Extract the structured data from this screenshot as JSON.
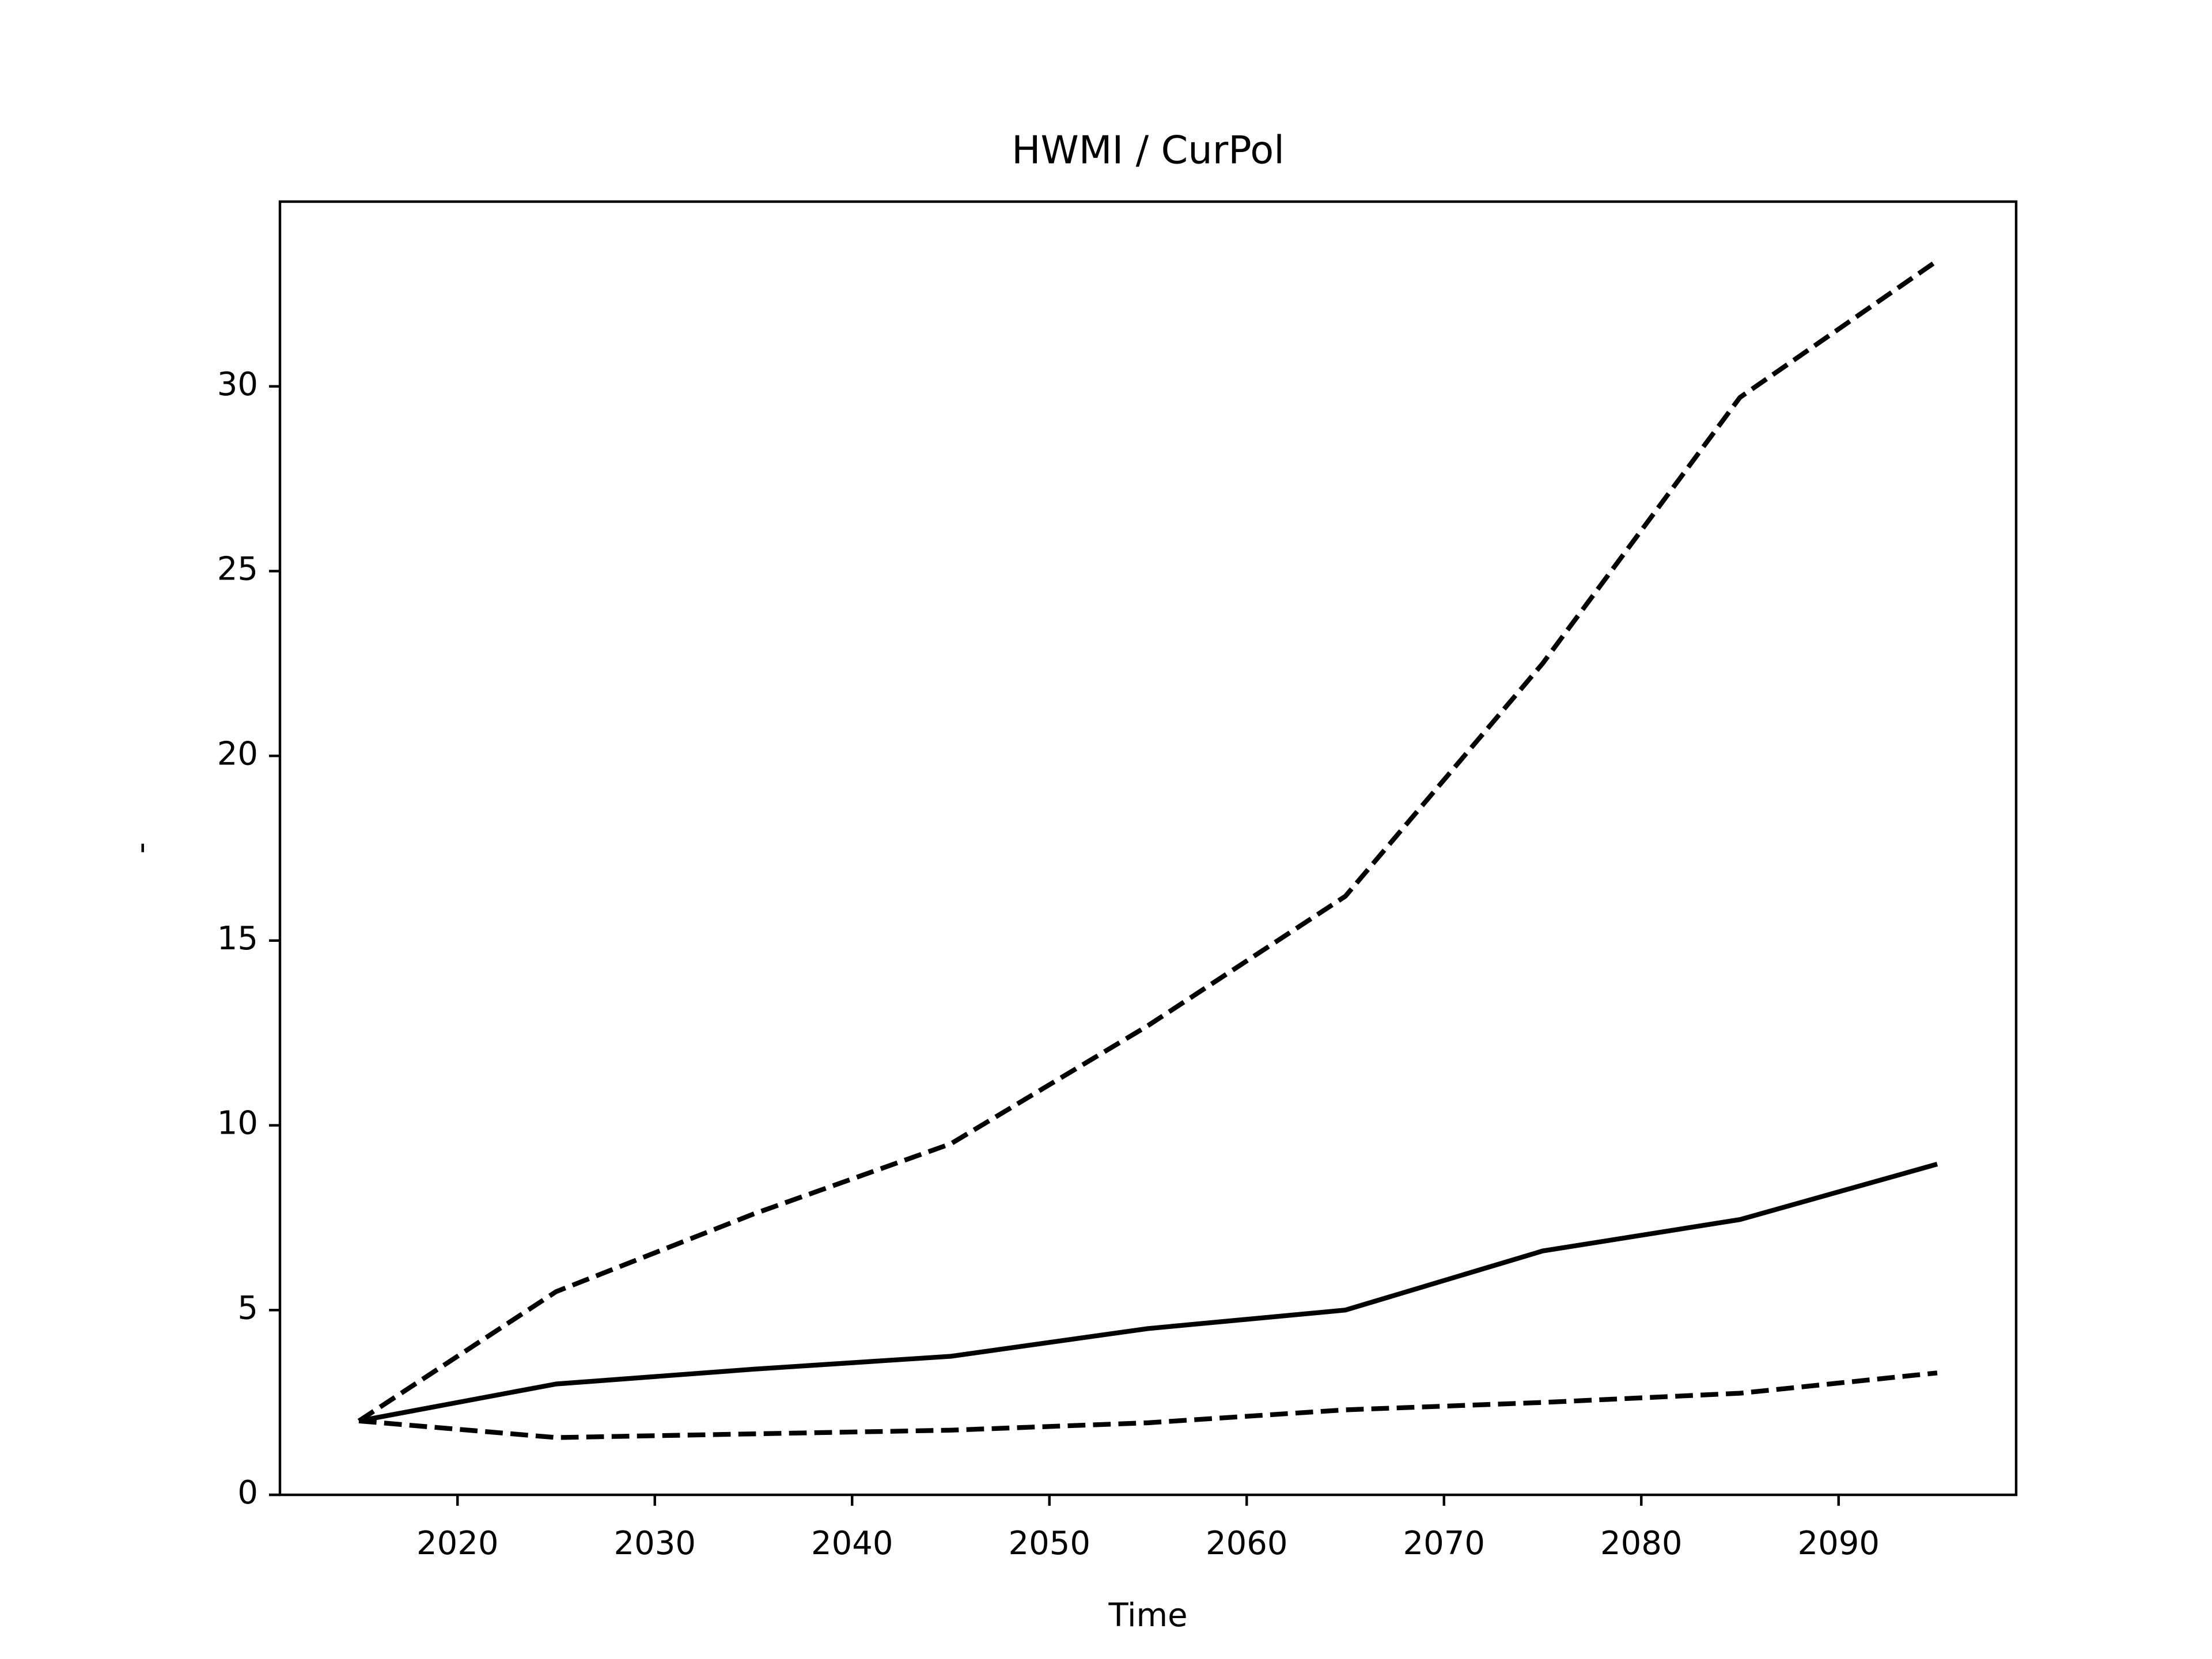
{
  "chart_data": {
    "type": "line",
    "title": "HWMI / CurPol",
    "xlabel": "Time",
    "ylabel": "-",
    "x": [
      2015,
      2025,
      2035,
      2045,
      2055,
      2065,
      2075,
      2085,
      2095
    ],
    "series": [
      {
        "color": "#000000",
        "linestyle": "solid",
        "values": [
          2,
          3,
          3.4,
          3.75,
          4.5,
          5.0,
          6.6,
          7.45,
          8.95
        ]
      },
      {
        "color": "#000000",
        "linestyle": "dashed",
        "values": [
          2,
          5.5,
          7.6,
          9.5,
          12.7,
          16.2,
          22.5,
          29.7,
          33.4
        ]
      },
      {
        "color": "#000000",
        "linestyle": "dashed",
        "values": [
          2,
          1.55,
          1.65,
          1.75,
          1.95,
          2.3,
          2.5,
          2.75,
          3.3
        ]
      }
    ],
    "xlim": [
      2011,
      2099
    ],
    "xticks": [
      2020,
      2030,
      2040,
      2050,
      2060,
      2070,
      2080,
      2090
    ],
    "ylim": [
      0,
      35
    ],
    "yticks": [
      0,
      5,
      10,
      15,
      20,
      25,
      30
    ],
    "grid": false
  }
}
